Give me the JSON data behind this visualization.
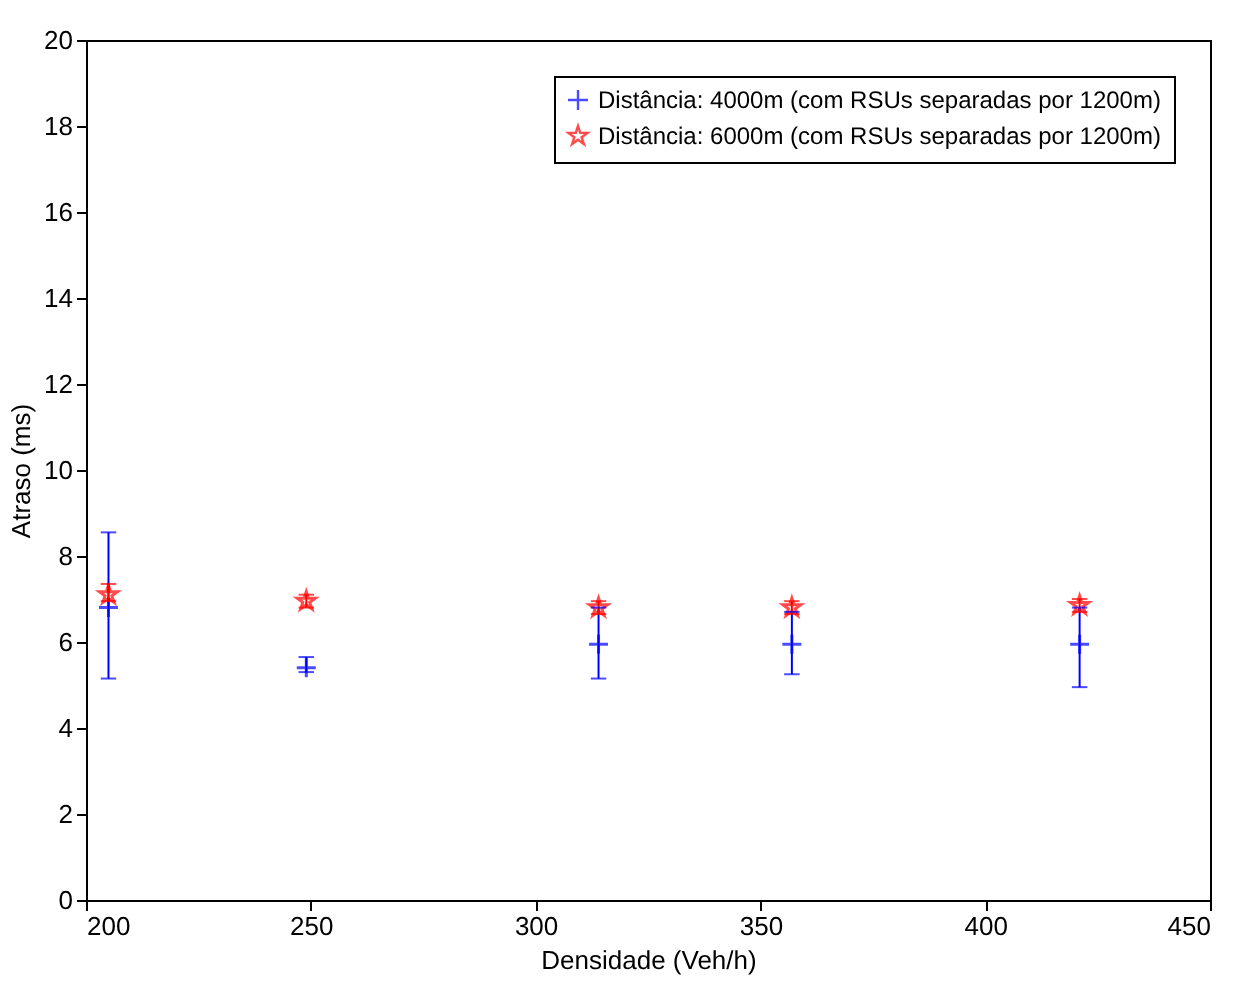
{
  "chart_data": {
    "type": "scatter",
    "xlabel": "Densidade (Veh/h)",
    "ylabel": "Atraso (ms)",
    "x": [
      205,
      249,
      314,
      357,
      421
    ],
    "series": [
      {
        "name": "Distância: 4000m (com RSUs separadas por 1200m)",
        "color": "#0000ff",
        "marker": "cross",
        "values": [
          6.8,
          5.4,
          5.95,
          5.95,
          5.95
        ],
        "errors": [
          [
            5.15,
            8.55
          ],
          [
            5.3,
            5.65
          ],
          [
            5.15,
            6.8
          ],
          [
            5.25,
            6.7
          ],
          [
            4.95,
            6.8
          ]
        ]
      },
      {
        "name": "Distância: 6000m (com RSUs separadas por 1200m)",
        "color": "#ff0000",
        "marker": "star",
        "values": [
          7.1,
          6.95,
          6.8,
          6.8,
          6.85
        ],
        "errors": [
          [
            6.95,
            7.35
          ],
          [
            6.8,
            7.1
          ],
          [
            6.65,
            6.95
          ],
          [
            6.65,
            6.95
          ],
          [
            6.7,
            7.0
          ]
        ]
      }
    ],
    "xlim": [
      200,
      450
    ],
    "xticks": [
      200,
      250,
      300,
      350,
      400,
      450
    ],
    "ylim": [
      0,
      20
    ],
    "yticks": [
      0,
      2,
      4,
      6,
      8,
      10,
      12,
      14,
      16,
      18,
      20
    ],
    "grid": false,
    "legend": "top right"
  }
}
